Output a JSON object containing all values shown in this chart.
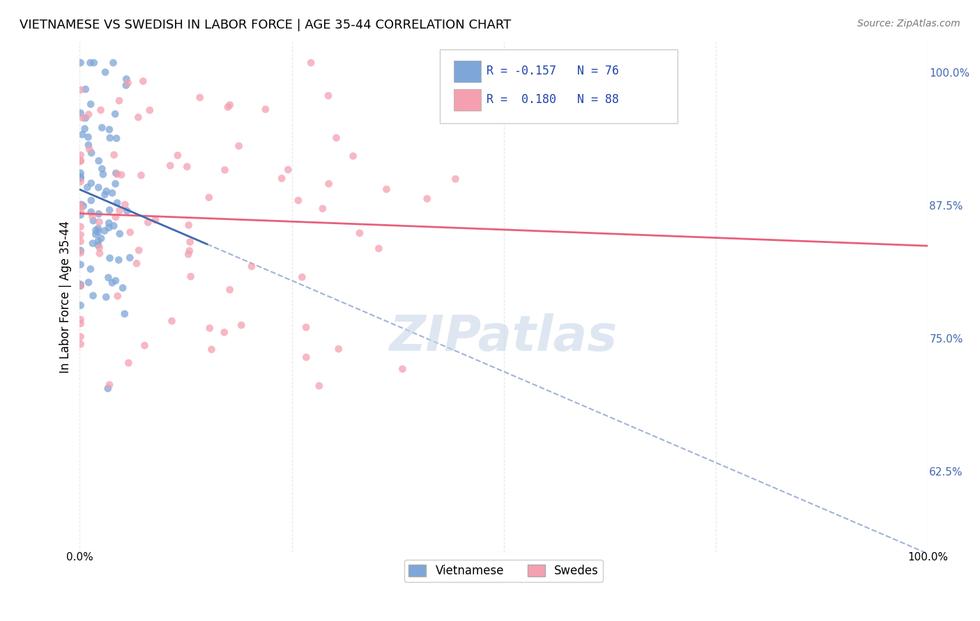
{
  "title": "VIETNAMESE VS SWEDISH IN LABOR FORCE | AGE 35-44 CORRELATION CHART",
  "source": "Source: ZipAtlas.com",
  "ylabel": "In Labor Force | Age 35-44",
  "ytick_labels": [
    "62.5%",
    "75.0%",
    "87.5%",
    "100.0%"
  ],
  "ytick_values": [
    0.625,
    0.75,
    0.875,
    1.0
  ],
  "xlim": [
    0.0,
    1.0
  ],
  "ylim": [
    0.55,
    1.03
  ],
  "legend_blue_label": "Vietnamese",
  "legend_pink_label": "Swedes",
  "R_blue": -0.157,
  "N_blue": 76,
  "R_pink": 0.18,
  "N_pink": 88,
  "blue_color": "#7EA6D8",
  "pink_color": "#F4A0B0",
  "blue_line_color": "#4169B0",
  "pink_line_color": "#E8607A",
  "watermark": "ZIPatlas",
  "watermark_color": "#C8D8E8",
  "background_color": "#FFFFFF"
}
